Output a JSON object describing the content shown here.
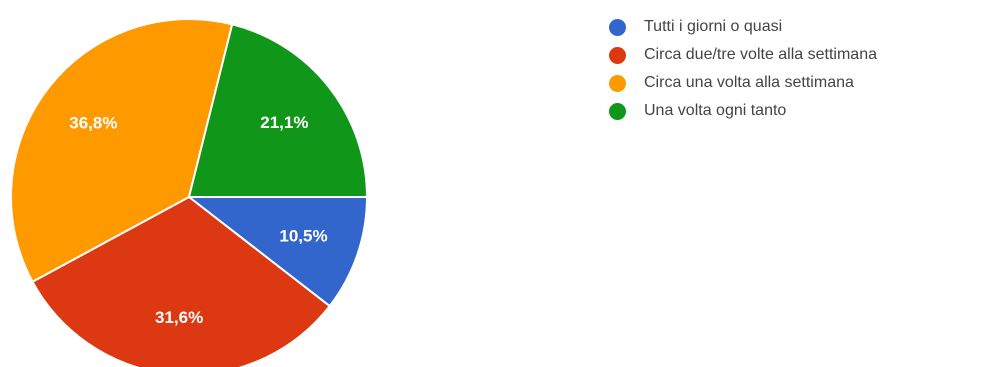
{
  "chart_data": {
    "type": "pie",
    "slices": [
      {
        "label": "Tutti i giorni o quasi",
        "value": 10.5,
        "value_label": "10,5%",
        "color": "#3366cc"
      },
      {
        "label": "Circa due/tre volte alla settimana",
        "value": 31.6,
        "value_label": "31,6%",
        "color": "#dc3912"
      },
      {
        "label": "Circa una volta alla settimana",
        "value": 36.8,
        "value_label": "36,8%",
        "color": "#ff9900"
      },
      {
        "label": "Una volta ogni tanto",
        "value": 21.1,
        "value_label": "21,1%",
        "color": "#109618"
      }
    ],
    "start_direction": "east",
    "rotation": "clockwise",
    "legend_position": "right"
  }
}
